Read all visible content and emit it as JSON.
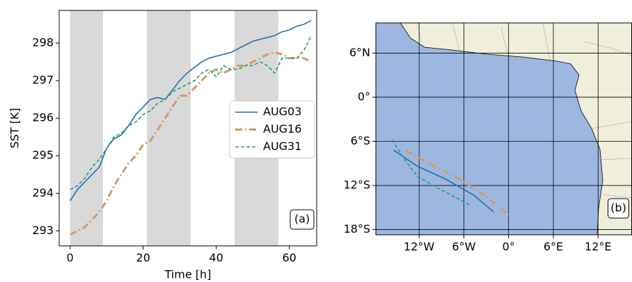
{
  "chart_data": [
    {
      "type": "line",
      "xlabel": "Time [h]",
      "ylabel": "SST [K]",
      "annotation": "(a)",
      "xlim": [
        -3,
        67.5
      ],
      "ylim": [
        292.6,
        298.87
      ],
      "xticks": [
        0,
        20,
        40,
        60
      ],
      "yticks": [
        293,
        294,
        295,
        296,
        297,
        298
      ],
      "shaded_spans": [
        [
          0,
          9
        ],
        [
          21,
          33
        ],
        [
          45,
          57
        ]
      ],
      "shade_color": "#d9d9d9",
      "legend": "center right",
      "x": [
        0,
        2,
        4,
        6,
        8,
        10,
        12,
        14,
        16,
        18,
        20,
        22,
        24,
        26,
        28,
        30,
        32,
        34,
        36,
        38,
        40,
        42,
        44,
        46,
        48,
        50,
        52,
        54,
        56,
        58,
        60,
        62,
        64,
        66
      ],
      "series": [
        {
          "name": "AUG03",
          "color": "#1f6fae",
          "linestyle": "solid",
          "values": [
            293.8,
            294.1,
            294.3,
            294.5,
            294.7,
            295.2,
            295.45,
            295.55,
            295.8,
            296.1,
            296.3,
            296.5,
            296.55,
            296.5,
            296.75,
            297.0,
            297.2,
            297.35,
            297.5,
            297.6,
            297.65,
            297.7,
            297.75,
            297.85,
            297.95,
            298.05,
            298.1,
            298.15,
            298.2,
            298.3,
            298.35,
            298.45,
            298.5,
            298.6
          ]
        },
        {
          "name": "AUG16",
          "color": "#d19a66",
          "linestyle": "dashdot",
          "values": [
            292.9,
            293.0,
            293.1,
            293.3,
            293.5,
            293.8,
            294.2,
            294.5,
            294.8,
            295.0,
            295.3,
            295.4,
            295.7,
            296.0,
            296.3,
            296.6,
            296.6,
            296.8,
            297.0,
            297.2,
            297.3,
            297.2,
            297.3,
            297.4,
            297.4,
            297.5,
            297.6,
            297.7,
            297.75,
            297.7,
            297.6,
            297.6,
            297.6,
            297.5
          ]
        },
        {
          "name": "AUG31",
          "color": "#1a9e74",
          "linestyle": "dashed",
          "values": [
            294.1,
            294.2,
            294.4,
            294.7,
            294.9,
            295.2,
            295.5,
            295.6,
            295.8,
            295.9,
            296.1,
            296.2,
            296.4,
            296.5,
            296.7,
            296.8,
            296.9,
            297.0,
            297.2,
            297.3,
            297.1,
            297.4,
            297.3,
            297.3,
            297.4,
            297.4,
            297.5,
            297.4,
            297.2,
            297.6,
            297.6,
            297.6,
            297.8,
            298.2
          ]
        }
      ]
    },
    {
      "type": "map",
      "annotation": "(b)",
      "grid": true,
      "xlim": [
        -17.8,
        16.5
      ],
      "ylim": [
        -18.7,
        10.1
      ],
      "xticks": [
        {
          "value": -12,
          "label": "12°W"
        },
        {
          "value": -6,
          "label": "6°W"
        },
        {
          "value": 0,
          "label": "0°"
        },
        {
          "value": 6,
          "label": "6°E"
        },
        {
          "value": 12,
          "label": "12°E"
        }
      ],
      "yticks": [
        {
          "value": 6,
          "label": "6°N"
        },
        {
          "value": 0,
          "label": "0°"
        },
        {
          "value": -6,
          "label": "6°S"
        },
        {
          "value": -12,
          "label": "12°S"
        },
        {
          "value": -18,
          "label": "18°S"
        }
      ],
      "series": [
        {
          "name": "AUG03",
          "color": "#1f6fae",
          "linestyle": "solid",
          "x": [
            -15.4,
            -12.2,
            -8.5,
            -4.7,
            -2.0
          ],
          "values": [
            -7.2,
            -9.4,
            -11.1,
            -13.3,
            -15.6
          ]
        },
        {
          "name": "AUG16",
          "color": "#d19a66",
          "linestyle": "dashdot",
          "x": [
            -13.8,
            -10.3,
            -6.6,
            -2.9,
            0.0
          ],
          "values": [
            -7.3,
            -9.2,
            -11.1,
            -13.6,
            -16.0
          ]
        },
        {
          "name": "AUG31",
          "color": "#1a9e74",
          "linestyle": "dashed",
          "x": [
            -15.6,
            -14.0,
            -12.2,
            -9.4,
            -5.1
          ],
          "values": [
            -5.8,
            -8.4,
            -10.8,
            -12.4,
            -14.7
          ]
        }
      ]
    }
  ]
}
